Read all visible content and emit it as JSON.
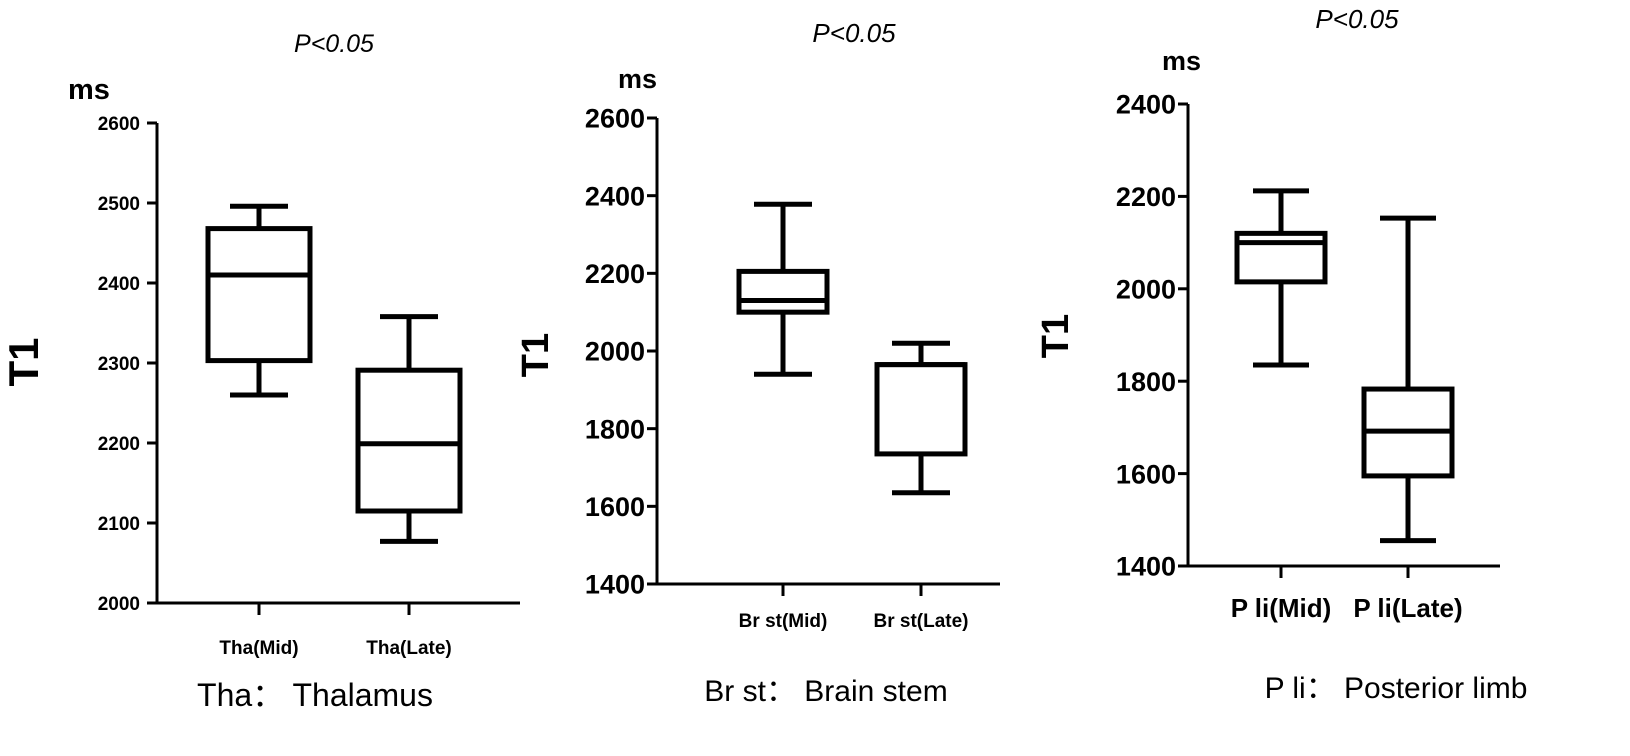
{
  "chart_data": [
    {
      "type": "box",
      "annotation": "P<0.05",
      "unit": "ms",
      "ylabel": "T1",
      "ylim": [
        2000,
        2600
      ],
      "yticks": [
        2000,
        2100,
        2200,
        2300,
        2400,
        2500,
        2600
      ],
      "categories": [
        "Tha(Mid)",
        "Tha(Late)"
      ],
      "boxes": [
        {
          "whisker_low": 2260,
          "q1": 2303,
          "median": 2410,
          "q3": 2468,
          "whisker_high": 2496
        },
        {
          "whisker_low": 2077,
          "q1": 2115,
          "median": 2199,
          "q3": 2291,
          "whisker_high": 2358
        }
      ],
      "caption": "Tha： Thalamus"
    },
    {
      "type": "box",
      "annotation": "P<0.05",
      "unit": "ms",
      "ylabel": "T1",
      "ylim": [
        1400,
        2600
      ],
      "yticks": [
        1400,
        1600,
        1800,
        2000,
        2200,
        2400,
        2600
      ],
      "categories": [
        "Br st(Mid)",
        "Br st(Late)"
      ],
      "boxes": [
        {
          "whisker_low": 1940,
          "q1": 2100,
          "median": 2130,
          "q3": 2205,
          "whisker_high": 2378
        },
        {
          "whisker_low": 1635,
          "q1": 1735,
          "median": 1965,
          "q3": 1965,
          "whisker_high": 2020
        }
      ],
      "caption": "Br st： Brain stem"
    },
    {
      "type": "box",
      "annotation": "P<0.05",
      "unit": "ms",
      "ylabel": "T1",
      "ylim": [
        1400,
        2400
      ],
      "yticks": [
        1400,
        1600,
        1800,
        2000,
        2200,
        2400
      ],
      "categories": [
        "P li(Mid)",
        "P li(Late)"
      ],
      "boxes": [
        {
          "whisker_low": 1835,
          "q1": 2015,
          "median": 2100,
          "q3": 2120,
          "whisker_high": 2212
        },
        {
          "whisker_low": 1455,
          "q1": 1595,
          "median": 1692,
          "q3": 1783,
          "whisker_high": 2153
        }
      ],
      "caption": "P li： Posterior limb"
    }
  ]
}
